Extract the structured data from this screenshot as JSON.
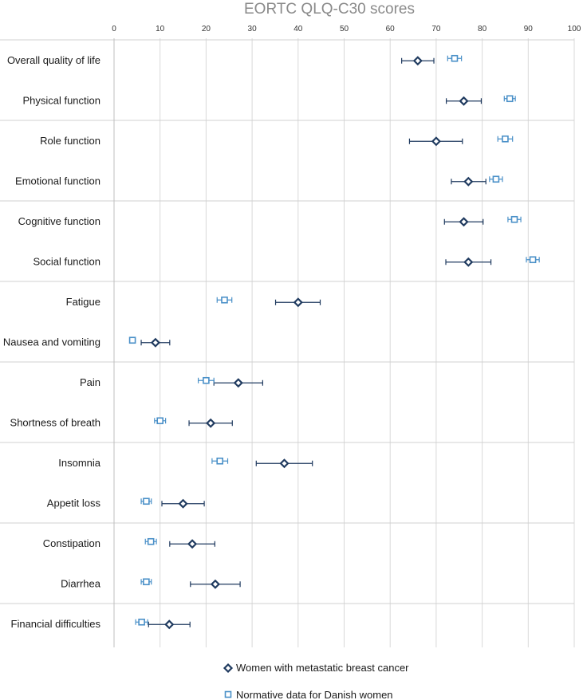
{
  "chart_data": {
    "type": "scatter",
    "title": "EORTC QLQ-C30 scores",
    "xlim": [
      0,
      100
    ],
    "x_ticks": [
      "0",
      "10",
      "20",
      "30",
      "40",
      "50",
      "60",
      "70",
      "80",
      "90",
      "100"
    ],
    "grid": true,
    "error_bars": true,
    "legend_position": "bottom",
    "categories": [
      "Overall quality of life",
      "Physical function",
      "Role function",
      "Emotional function",
      "Cognitive function",
      "Social function",
      "Fatigue",
      "Nausea and vomiting",
      "Pain",
      "Shortness of breath",
      "Insomnia",
      "Appetit loss",
      "Constipation",
      "Diarrhea",
      "Financial difficulties"
    ],
    "series": [
      {
        "name": "Women with metastatic breast cancer",
        "marker": "diamond",
        "color": "#1f3a5f",
        "values": [
          66,
          76,
          70,
          77,
          76,
          77,
          40,
          9,
          27,
          21,
          37,
          15,
          17,
          22,
          12
        ],
        "lower": [
          62.5,
          72.2,
          64.2,
          73.3,
          71.8,
          72.1,
          35.1,
          5.9,
          21.7,
          16.3,
          30.9,
          10.4,
          12.1,
          16.6,
          7.5
        ],
        "upper": [
          69.5,
          79.8,
          75.7,
          80.8,
          80.2,
          81.9,
          44.8,
          12.1,
          32.3,
          25.7,
          43.1,
          19.6,
          21.9,
          27.4,
          16.5
        ]
      },
      {
        "name": "Normative data for Danish women",
        "marker": "square",
        "color": "#4a90c8",
        "values": [
          74,
          86,
          85,
          83,
          87,
          91,
          24,
          4,
          20,
          10,
          23,
          7,
          8,
          7,
          6
        ],
        "lower": [
          72.5,
          84.8,
          83.4,
          81.6,
          85.6,
          89.6,
          22.4,
          3.4,
          18.3,
          8.8,
          21.3,
          5.9,
          6.8,
          5.9,
          4.7
        ],
        "upper": [
          75.5,
          87.2,
          86.6,
          84.4,
          88.4,
          92.4,
          25.6,
          4.6,
          21.7,
          11.2,
          24.7,
          8.1,
          9.2,
          8.1,
          7.3
        ]
      }
    ]
  }
}
